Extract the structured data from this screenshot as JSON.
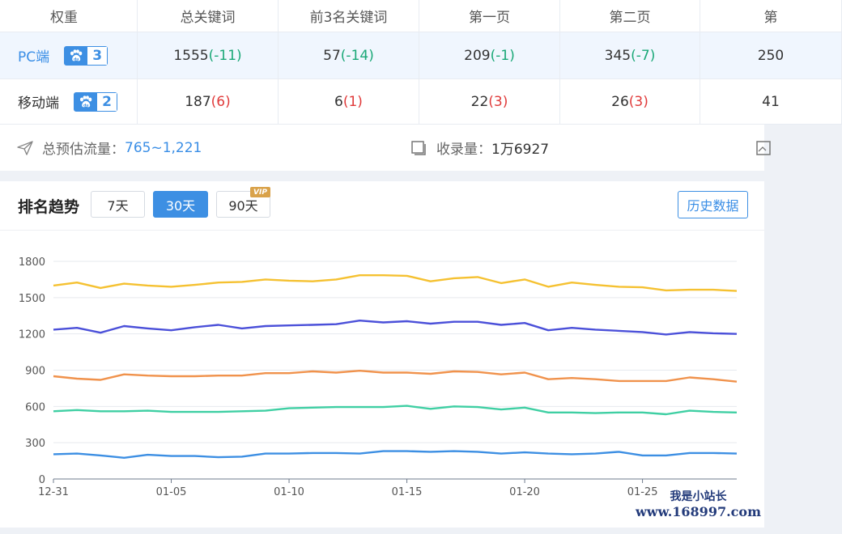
{
  "table": {
    "headers": [
      "权重",
      "总关键词",
      "前3名关键词",
      "第一页",
      "第二页",
      "第"
    ],
    "rows": [
      {
        "platform": "PC端",
        "level": "3",
        "cells": [
          {
            "value": "1555",
            "change": "(-11)"
          },
          {
            "value": "57",
            "change": "(-14)"
          },
          {
            "value": "209",
            "change": "(-1)"
          },
          {
            "value": "345",
            "change": "(-7)"
          },
          {
            "value": "250",
            "change": ""
          }
        ]
      },
      {
        "platform": "移动端",
        "level": "2",
        "cells": [
          {
            "value": "187",
            "change": "(6)"
          },
          {
            "value": "6",
            "change": "(1)"
          },
          {
            "value": "22",
            "change": "(3)"
          },
          {
            "value": "26",
            "change": "(3)"
          },
          {
            "value": "41",
            "change": ""
          }
        ]
      }
    ]
  },
  "summary": {
    "traffic_label": "总预估流量：",
    "traffic_value": "765~1,221",
    "index_label": "收录量：",
    "index_value": "1万6927"
  },
  "trend": {
    "title": "排名趋势",
    "ranges": [
      "7天",
      "30天",
      "90天"
    ],
    "active_range": "30天",
    "vip_label": "VIP",
    "history_button": "历史数据"
  },
  "watermark": {
    "line1": "我是小站长",
    "line2": "www.168997.com"
  },
  "colors": {
    "accent": "#3d8fe3",
    "positive_change": "#1aa877",
    "negative_change": "#e03a3a"
  },
  "chart_data": {
    "type": "line",
    "x": [
      "12-31",
      "01-01",
      "01-02",
      "01-03",
      "01-04",
      "01-05",
      "01-06",
      "01-07",
      "01-08",
      "01-09",
      "01-10",
      "01-11",
      "01-12",
      "01-13",
      "01-14",
      "01-15",
      "01-16",
      "01-17",
      "01-18",
      "01-19",
      "01-20",
      "01-21",
      "01-22",
      "01-23",
      "01-24",
      "01-25",
      "01-26",
      "01-27",
      "01-28",
      "01-29"
    ],
    "xticks": [
      "12-31",
      "01-05",
      "01-10",
      "01-15",
      "01-20",
      "01-25"
    ],
    "yticks": [
      0,
      300,
      600,
      900,
      1200,
      1500,
      1800
    ],
    "ylim": [
      0,
      1800
    ],
    "grid": true,
    "series": [
      {
        "color": "#f5c131",
        "values": [
          1600,
          1625,
          1580,
          1615,
          1600,
          1590,
          1605,
          1625,
          1630,
          1650,
          1640,
          1635,
          1650,
          1685,
          1685,
          1680,
          1635,
          1660,
          1670,
          1620,
          1650,
          1590,
          1625,
          1605,
          1590,
          1585,
          1560,
          1565,
          1565,
          1555
        ]
      },
      {
        "color": "#4b50d9",
        "values": [
          1235,
          1250,
          1210,
          1265,
          1245,
          1230,
          1255,
          1275,
          1245,
          1265,
          1270,
          1275,
          1280,
          1310,
          1295,
          1305,
          1285,
          1300,
          1300,
          1275,
          1290,
          1230,
          1250,
          1235,
          1225,
          1215,
          1195,
          1215,
          1205,
          1200
        ]
      },
      {
        "color": "#f0924c",
        "values": [
          850,
          830,
          820,
          865,
          855,
          850,
          850,
          855,
          855,
          875,
          875,
          890,
          880,
          895,
          880,
          880,
          870,
          890,
          885,
          865,
          880,
          825,
          835,
          825,
          810,
          810,
          810,
          840,
          825,
          805
        ]
      },
      {
        "color": "#3fcfa3",
        "values": [
          560,
          570,
          560,
          560,
          565,
          555,
          555,
          555,
          560,
          565,
          585,
          590,
          595,
          595,
          595,
          605,
          580,
          600,
          595,
          575,
          590,
          550,
          550,
          545,
          550,
          550,
          535,
          565,
          555,
          550
        ]
      },
      {
        "color": "#3d8fe3",
        "values": [
          205,
          210,
          195,
          175,
          200,
          190,
          190,
          180,
          185,
          210,
          210,
          215,
          215,
          210,
          230,
          230,
          225,
          230,
          225,
          210,
          220,
          210,
          205,
          210,
          225,
          195,
          195,
          215,
          215,
          210
        ]
      }
    ]
  }
}
